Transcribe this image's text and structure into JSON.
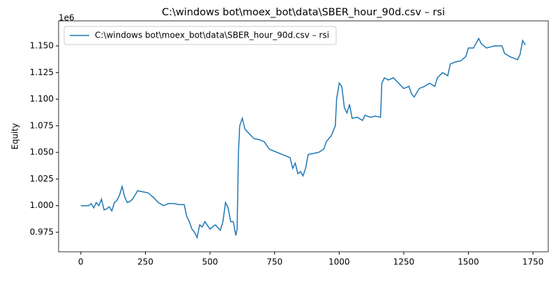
{
  "chart_data": {
    "type": "line",
    "title": "C:\\windows bot\\moex_bot\\data\\SBER_hour_90d.csv – rsi",
    "y_label": "Equity",
    "y_offset_text": "1e6",
    "x": [
      0,
      30,
      40,
      50,
      60,
      70,
      80,
      90,
      100,
      110,
      120,
      130,
      140,
      150,
      160,
      170,
      180,
      190,
      200,
      210,
      220,
      240,
      260,
      280,
      300,
      320,
      340,
      360,
      380,
      400,
      410,
      420,
      430,
      440,
      450,
      460,
      470,
      480,
      500,
      520,
      540,
      550,
      560,
      570,
      580,
      590,
      600,
      605,
      610,
      615,
      625,
      635,
      650,
      670,
      690,
      710,
      730,
      760,
      790,
      810,
      820,
      830,
      840,
      850,
      860,
      870,
      880,
      900,
      920,
      940,
      950,
      960,
      970,
      985,
      990,
      1000,
      1010,
      1020,
      1030,
      1040,
      1050,
      1070,
      1090,
      1100,
      1120,
      1140,
      1160,
      1165,
      1175,
      1190,
      1210,
      1230,
      1250,
      1270,
      1280,
      1290,
      1310,
      1330,
      1350,
      1370,
      1380,
      1400,
      1420,
      1430,
      1450,
      1470,
      1490,
      1500,
      1520,
      1540,
      1550,
      1570,
      1600,
      1630,
      1640,
      1660,
      1680,
      1690,
      1700,
      1710,
      1720
    ],
    "series": [
      {
        "name": "C:\\windows bot\\moex_bot\\data\\SBER_hour_90d.csv – rsi",
        "color": "#1f77b4",
        "values": [
          1000000,
          1000000,
          1002000,
          998000,
          1003000,
          1000000,
          1006000,
          996000,
          997000,
          999000,
          995000,
          1003000,
          1005000,
          1010000,
          1018000,
          1008000,
          1003000,
          1004000,
          1006000,
          1010000,
          1014000,
          1013000,
          1012000,
          1008000,
          1003000,
          1000000,
          1002000,
          1002000,
          1001000,
          1001000,
          990000,
          985000,
          978000,
          975000,
          970000,
          982000,
          980000,
          985000,
          978000,
          982000,
          977000,
          985000,
          1003000,
          998000,
          985000,
          985000,
          972000,
          978000,
          1050000,
          1075000,
          1082000,
          1072000,
          1068000,
          1063000,
          1062000,
          1060000,
          1053000,
          1050000,
          1047000,
          1045000,
          1035000,
          1040000,
          1030000,
          1032000,
          1028000,
          1035000,
          1048000,
          1049000,
          1050000,
          1053000,
          1060000,
          1063000,
          1066000,
          1075000,
          1100000,
          1115000,
          1112000,
          1092000,
          1087000,
          1095000,
          1082000,
          1083000,
          1080000,
          1085000,
          1083000,
          1084000,
          1083000,
          1115000,
          1120000,
          1118000,
          1120000,
          1115000,
          1110000,
          1112000,
          1105000,
          1102000,
          1110000,
          1112000,
          1115000,
          1112000,
          1120000,
          1125000,
          1122000,
          1133000,
          1135000,
          1136000,
          1140000,
          1148000,
          1148000,
          1157000,
          1152000,
          1148000,
          1150000,
          1150000,
          1143000,
          1140000,
          1138000,
          1137000,
          1142000,
          1155000,
          1151000
        ]
      }
    ],
    "xlim": [
      -86,
      1809
    ],
    "xticks": [
      0,
      250,
      500,
      750,
      1000,
      1250,
      1500,
      1750
    ],
    "ylim": [
      956700,
      1173500
    ],
    "yticks": [
      {
        "value": 975000,
        "label": "0.975"
      },
      {
        "value": 1000000,
        "label": "1.000"
      },
      {
        "value": 1025000,
        "label": "1.025"
      },
      {
        "value": 1050000,
        "label": "1.050"
      },
      {
        "value": 1075000,
        "label": "1.075"
      },
      {
        "value": 1100000,
        "label": "1.100"
      },
      {
        "value": 1125000,
        "label": "1.125"
      },
      {
        "value": 1150000,
        "label": "1.150"
      }
    ],
    "grid": false,
    "legend": "upper left"
  }
}
